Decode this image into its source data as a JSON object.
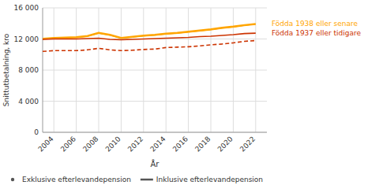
{
  "chart_data": {
    "type": "line",
    "x": [
      2003,
      2004,
      2005,
      2006,
      2007,
      2008,
      2009,
      2010,
      2011,
      2012,
      2013,
      2014,
      2015,
      2016,
      2017,
      2018,
      2019,
      2020,
      2021,
      2022
    ],
    "series": [
      {
        "color": "#FFA500",
        "line_style": "solid",
        "values": [
          12050,
          12150,
          12200,
          12250,
          12400,
          12800,
          12550,
          12150,
          12300,
          12450,
          12550,
          12700,
          12800,
          12950,
          13100,
          13250,
          13450,
          13600,
          13800,
          13950
        ]
      },
      {
        "color": "#FFA500",
        "line_style": "solid",
        "values": [
          11950,
          12050,
          12100,
          12150,
          12300,
          12700,
          12450,
          12050,
          12200,
          12350,
          12450,
          12600,
          12700,
          12850,
          13000,
          13150,
          13350,
          13500,
          13700,
          13850
        ]
      },
      {
        "color": "#CC3300",
        "line_style": "solid",
        "values": [
          11950,
          12000,
          12000,
          12000,
          12050,
          12100,
          11950,
          11900,
          11950,
          12000,
          12050,
          12100,
          12150,
          12200,
          12300,
          12350,
          12450,
          12550,
          12700,
          12750
        ]
      },
      {
        "color": "#CC3300",
        "line_style": "dashed",
        "values": [
          10400,
          10500,
          10500,
          10500,
          10600,
          10800,
          10600,
          10500,
          10550,
          10650,
          10700,
          10900,
          10950,
          11000,
          11100,
          11250,
          11350,
          11500,
          11700,
          11800
        ]
      }
    ],
    "xlabel": "År",
    "ylabel": "Snittutbetalning, kro",
    "xlim": [
      2003,
      2023
    ],
    "xticks": [
      2004,
      2006,
      2008,
      2010,
      2012,
      2014,
      2016,
      2018,
      2020,
      2022
    ],
    "ylim": [
      0,
      16000
    ],
    "yticks": [
      0,
      {
        "value": 4000,
        "label": "4 000"
      },
      {
        "value": 8000,
        "label": "8 000"
      },
      {
        "value": 12000,
        "label": "12 000"
      },
      {
        "value": 16000,
        "label": "16 000"
      }
    ],
    "grid": true,
    "annotations": [
      {
        "text": "Födda 1938 eller senare",
        "y": 13950,
        "color": "#FFA500"
      },
      {
        "text": "Födda 1937 eller tidigare",
        "y": 12750,
        "color": "#CC3300"
      }
    ],
    "legend": "lower left",
    "legend_entries": [
      {
        "label": "Exklusive efterlevandepension",
        "marker": "dot"
      },
      {
        "label": "Inklusive efterlevandepension",
        "line_style": "solid"
      }
    ]
  }
}
